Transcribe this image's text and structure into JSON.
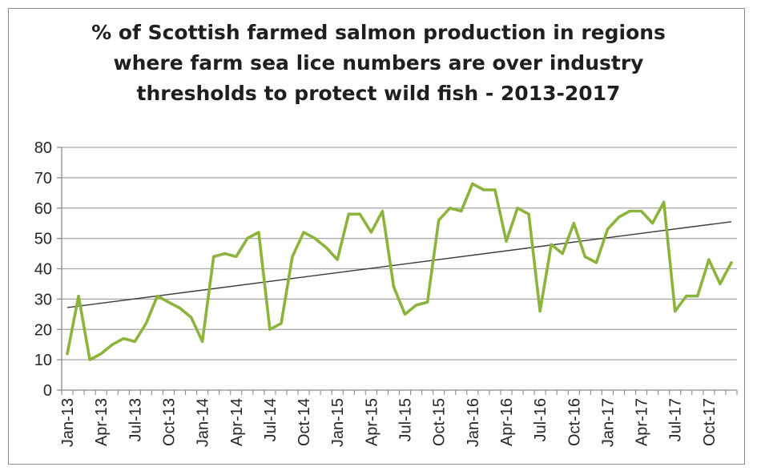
{
  "chart_data": {
    "type": "line",
    "title_lines": [
      "% of Scottish farmed salmon production in regions",
      "where farm sea lice numbers are over industry",
      "thresholds to protect wild fish - 2013-2017"
    ],
    "xlabel": "",
    "ylabel": "",
    "ylim": [
      0,
      80
    ],
    "yticks": [
      0,
      10,
      20,
      30,
      40,
      50,
      60,
      70,
      80
    ],
    "grid": true,
    "legend": "none",
    "x_tick_labels": [
      "Jan-13",
      "Apr-13",
      "Jul-13",
      "Oct-13",
      "Jan-14",
      "Apr-14",
      "Jul-14",
      "Oct-14",
      "Jan-15",
      "Apr-15",
      "Jul-15",
      "Oct-15",
      "Jan-16",
      "Apr-16",
      "Jul-16",
      "Oct-16",
      "Jan-17",
      "Apr-17",
      "Jul-17",
      "Oct-17"
    ],
    "x_start": "Jan-13",
    "x_end": "Dec-17",
    "series": [
      {
        "color": "#8cb43c",
        "values": [
          12,
          31,
          10,
          12,
          15,
          17,
          16,
          22,
          31,
          29,
          27,
          24,
          16,
          44,
          45,
          44,
          50,
          52,
          20,
          22,
          44,
          52,
          50,
          47,
          43,
          58,
          58,
          52,
          59,
          34,
          25,
          28,
          29,
          56,
          60,
          59,
          68,
          66,
          66,
          49,
          60,
          58,
          26,
          48,
          45,
          55,
          44,
          42,
          53,
          57,
          59,
          59,
          55,
          62,
          26,
          31,
          31,
          43,
          35,
          42
        ]
      }
    ],
    "trendline": {
      "color": "#3a3a3a",
      "start": 27.2,
      "end": 55.5
    }
  }
}
